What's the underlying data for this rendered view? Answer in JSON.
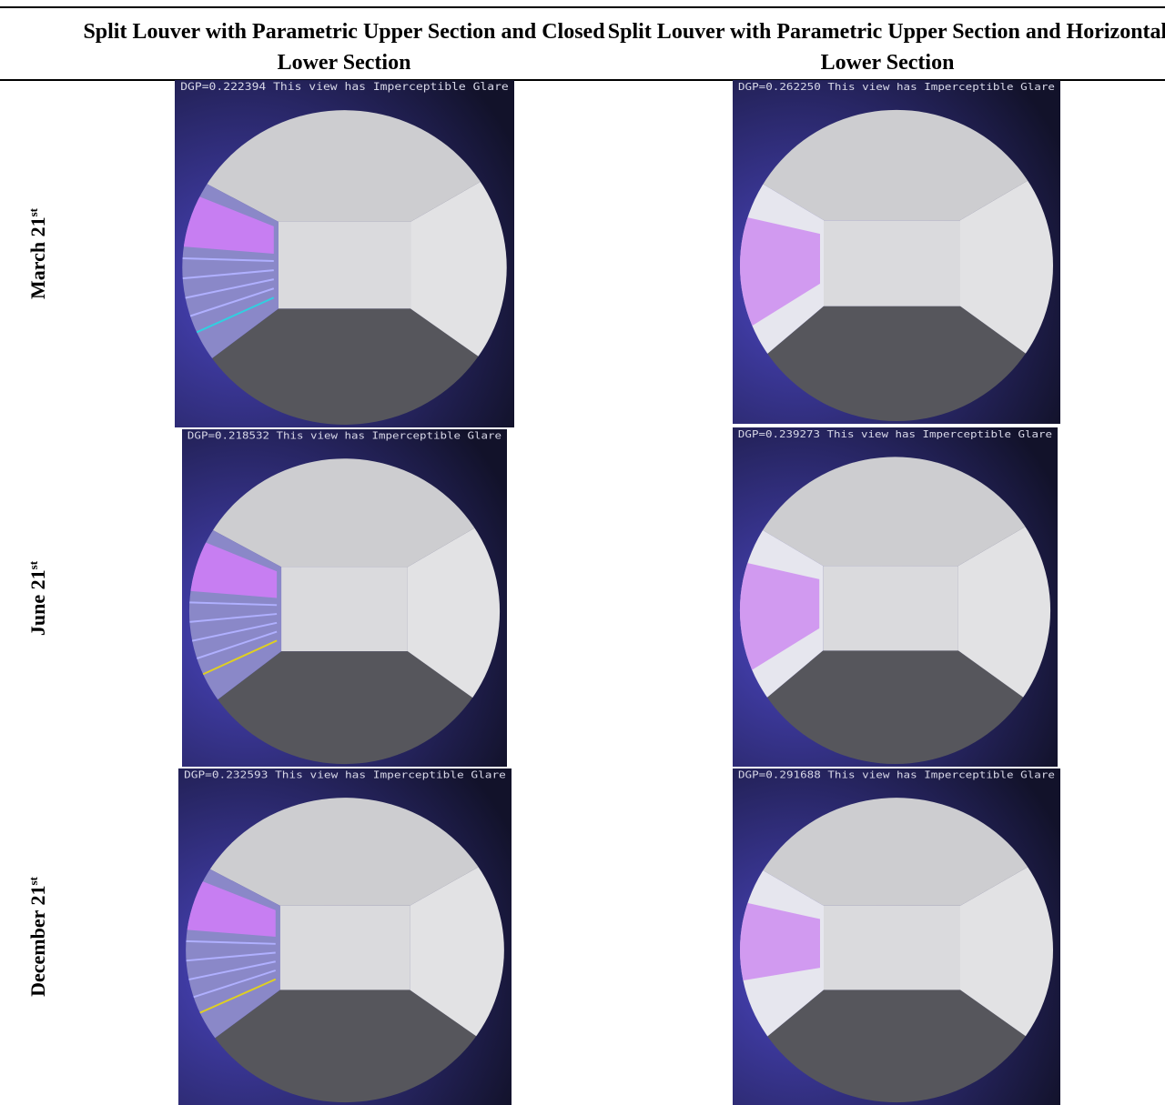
{
  "table": {
    "columns": [
      "Split Louver with Parametric Upper Section and Closed Lower Section",
      "Split Louver with Parametric Upper Section and Horizontal Lower Section"
    ],
    "rows": [
      {
        "label": "March 21",
        "suffix": "st",
        "cells": [
          "DGP=0.222394 This view has Imperceptible Glare",
          "DGP=0.262250 This view has Imperceptible Glare"
        ]
      },
      {
        "label": "June 21",
        "suffix": "st",
        "cells": [
          "DGP=0.218532 This view has Imperceptible Glare",
          "DGP=0.239273 This view has Imperceptible Glare"
        ]
      },
      {
        "label": "December 21",
        "suffix": "st",
        "cells": [
          "DGP=0.232593 This view has Imperceptible Glare",
          "DGP=0.291688 This view has Imperceptible Glare"
        ]
      }
    ]
  }
}
